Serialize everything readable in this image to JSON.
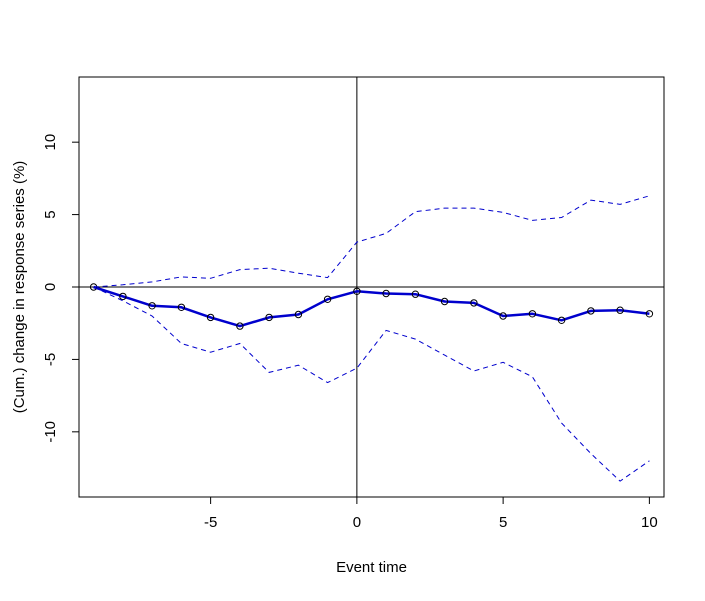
{
  "chart_data": {
    "type": "line",
    "title": "",
    "xlabel": "Event time",
    "ylabel": "(Cum.) change in response series (%)",
    "xlim": [
      -9.5,
      10.5
    ],
    "ylim": [
      -14.5,
      14.5
    ],
    "x_ticks": [
      -5,
      0,
      5,
      10
    ],
    "y_ticks": [
      -10,
      -5,
      0,
      5,
      10
    ],
    "x_tick_labels": [
      "-5",
      "0",
      "5",
      "10"
    ],
    "y_tick_labels": [
      "-10",
      "-5",
      "0",
      "5",
      "10"
    ],
    "grid": false,
    "reference_lines": {
      "vertical_x": 0,
      "horizontal_y": 0
    },
    "x": [
      -9,
      -8,
      -7,
      -6,
      -5,
      -4,
      -3,
      -2,
      -1,
      0,
      1,
      2,
      3,
      4,
      5,
      6,
      7,
      8,
      9,
      10
    ],
    "series": [
      {
        "role": "estimate",
        "style": "solid-with-circles",
        "color": "#0000cd",
        "values": [
          0,
          -0.65,
          -1.3,
          -1.4,
          -2.1,
          -2.7,
          -2.1,
          -1.9,
          -0.85,
          -0.3,
          -0.45,
          -0.5,
          -1.0,
          -1.1,
          -2.0,
          -1.85,
          -2.3,
          -1.65,
          -1.6,
          -1.85
        ]
      },
      {
        "role": "upper-band",
        "style": "dashed",
        "color": "#0000cd",
        "values": [
          0,
          0.15,
          0.35,
          0.7,
          0.6,
          1.2,
          1.3,
          0.95,
          0.65,
          3.1,
          3.7,
          5.2,
          5.45,
          5.45,
          5.15,
          4.6,
          4.8,
          6.0,
          5.7,
          6.3
        ]
      },
      {
        "role": "lower-band",
        "style": "dashed",
        "color": "#0000cd",
        "values": [
          0,
          -0.95,
          -2.0,
          -3.9,
          -4.5,
          -3.9,
          -5.9,
          -5.4,
          -6.6,
          -5.6,
          -3.0,
          -3.6,
          -4.7,
          -5.8,
          -5.2,
          -6.2,
          -9.4,
          -11.5,
          -13.4,
          -12.0
        ]
      }
    ]
  }
}
